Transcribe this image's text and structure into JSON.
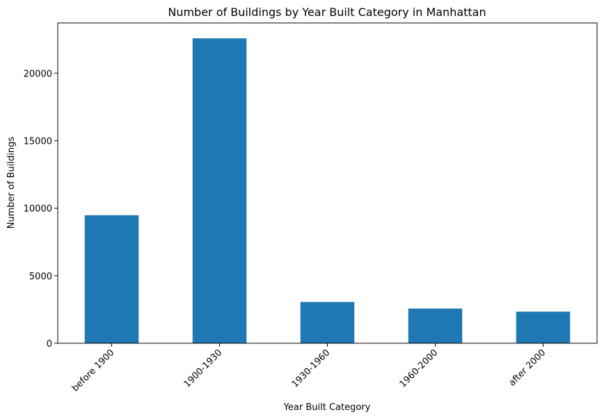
{
  "chart_data": {
    "type": "bar",
    "title": "Number of Buildings by Year Built Category in Manhattan",
    "xlabel": "Year Built Category",
    "ylabel": "Number of Buildings",
    "categories": [
      "before 1900",
      "1900-1930",
      "1930-1960",
      "1960-2000",
      "after 2000"
    ],
    "values": [
      9480,
      22580,
      3060,
      2570,
      2340
    ],
    "ylim": [
      0,
      23720
    ],
    "yticks": [
      0,
      5000,
      10000,
      15000,
      20000
    ],
    "ytick_labels": [
      "0",
      "5000",
      "10000",
      "15000",
      "20000"
    ],
    "xtick_rotation": 45,
    "grid": false,
    "bar_color": "#1f77b4"
  }
}
